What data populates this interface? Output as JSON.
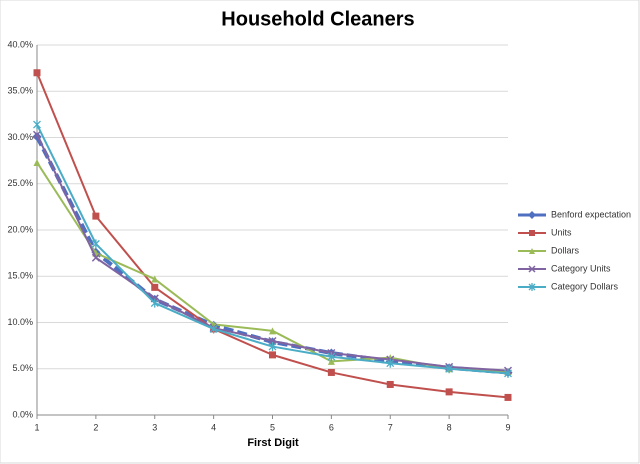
{
  "chart_data": {
    "type": "line",
    "title": "Household Cleaners",
    "x_label": "First Digit",
    "x": [
      1,
      2,
      3,
      4,
      5,
      6,
      7,
      8,
      9
    ],
    "xlim": [
      1,
      9
    ],
    "xticks": [
      1,
      2,
      3,
      4,
      5,
      6,
      7,
      8,
      9
    ],
    "ylim": [
      0,
      40
    ],
    "yticks": [
      {
        "value": 0,
        "label": "0.0%"
      },
      {
        "value": 5,
        "label": "5.0%"
      },
      {
        "value": 10,
        "label": "10.0%"
      },
      {
        "value": 15,
        "label": "15.0%"
      },
      {
        "value": 20,
        "label": "20.0%"
      },
      {
        "value": 25,
        "label": "25.0%"
      },
      {
        "value": 30,
        "label": "30.0%"
      },
      {
        "value": 35,
        "label": "35.0%"
      },
      {
        "value": 40,
        "label": "40.0%"
      }
    ],
    "grid": true,
    "legend": "right",
    "series": [
      {
        "name": "Benford expectation",
        "color": "#4f6fc0",
        "marker": "diamond",
        "dashed": true,
        "values": [
          30.1,
          17.6,
          12.5,
          9.7,
          7.9,
          6.7,
          5.8,
          5.1,
          4.6
        ]
      },
      {
        "name": "Units",
        "color": "#c0504d",
        "marker": "square",
        "values": [
          37.0,
          21.5,
          13.8,
          9.3,
          6.5,
          4.6,
          3.3,
          2.5,
          1.9
        ]
      },
      {
        "name": "Dollars",
        "color": "#9bbb59",
        "marker": "triangle",
        "values": [
          27.3,
          17.5,
          14.7,
          9.8,
          9.1,
          5.8,
          6.2,
          5.0,
          4.7
        ]
      },
      {
        "name": "Category Units",
        "color": "#8064a2",
        "marker": "x",
        "values": [
          30.3,
          17.0,
          12.6,
          9.4,
          8.0,
          6.7,
          6.0,
          5.2,
          4.8
        ]
      },
      {
        "name": "Category Dollars",
        "color": "#4bacc6",
        "marker": "star",
        "values": [
          31.4,
          18.5,
          12.1,
          9.3,
          7.4,
          6.3,
          5.6,
          5.0,
          4.5
        ]
      }
    ]
  }
}
